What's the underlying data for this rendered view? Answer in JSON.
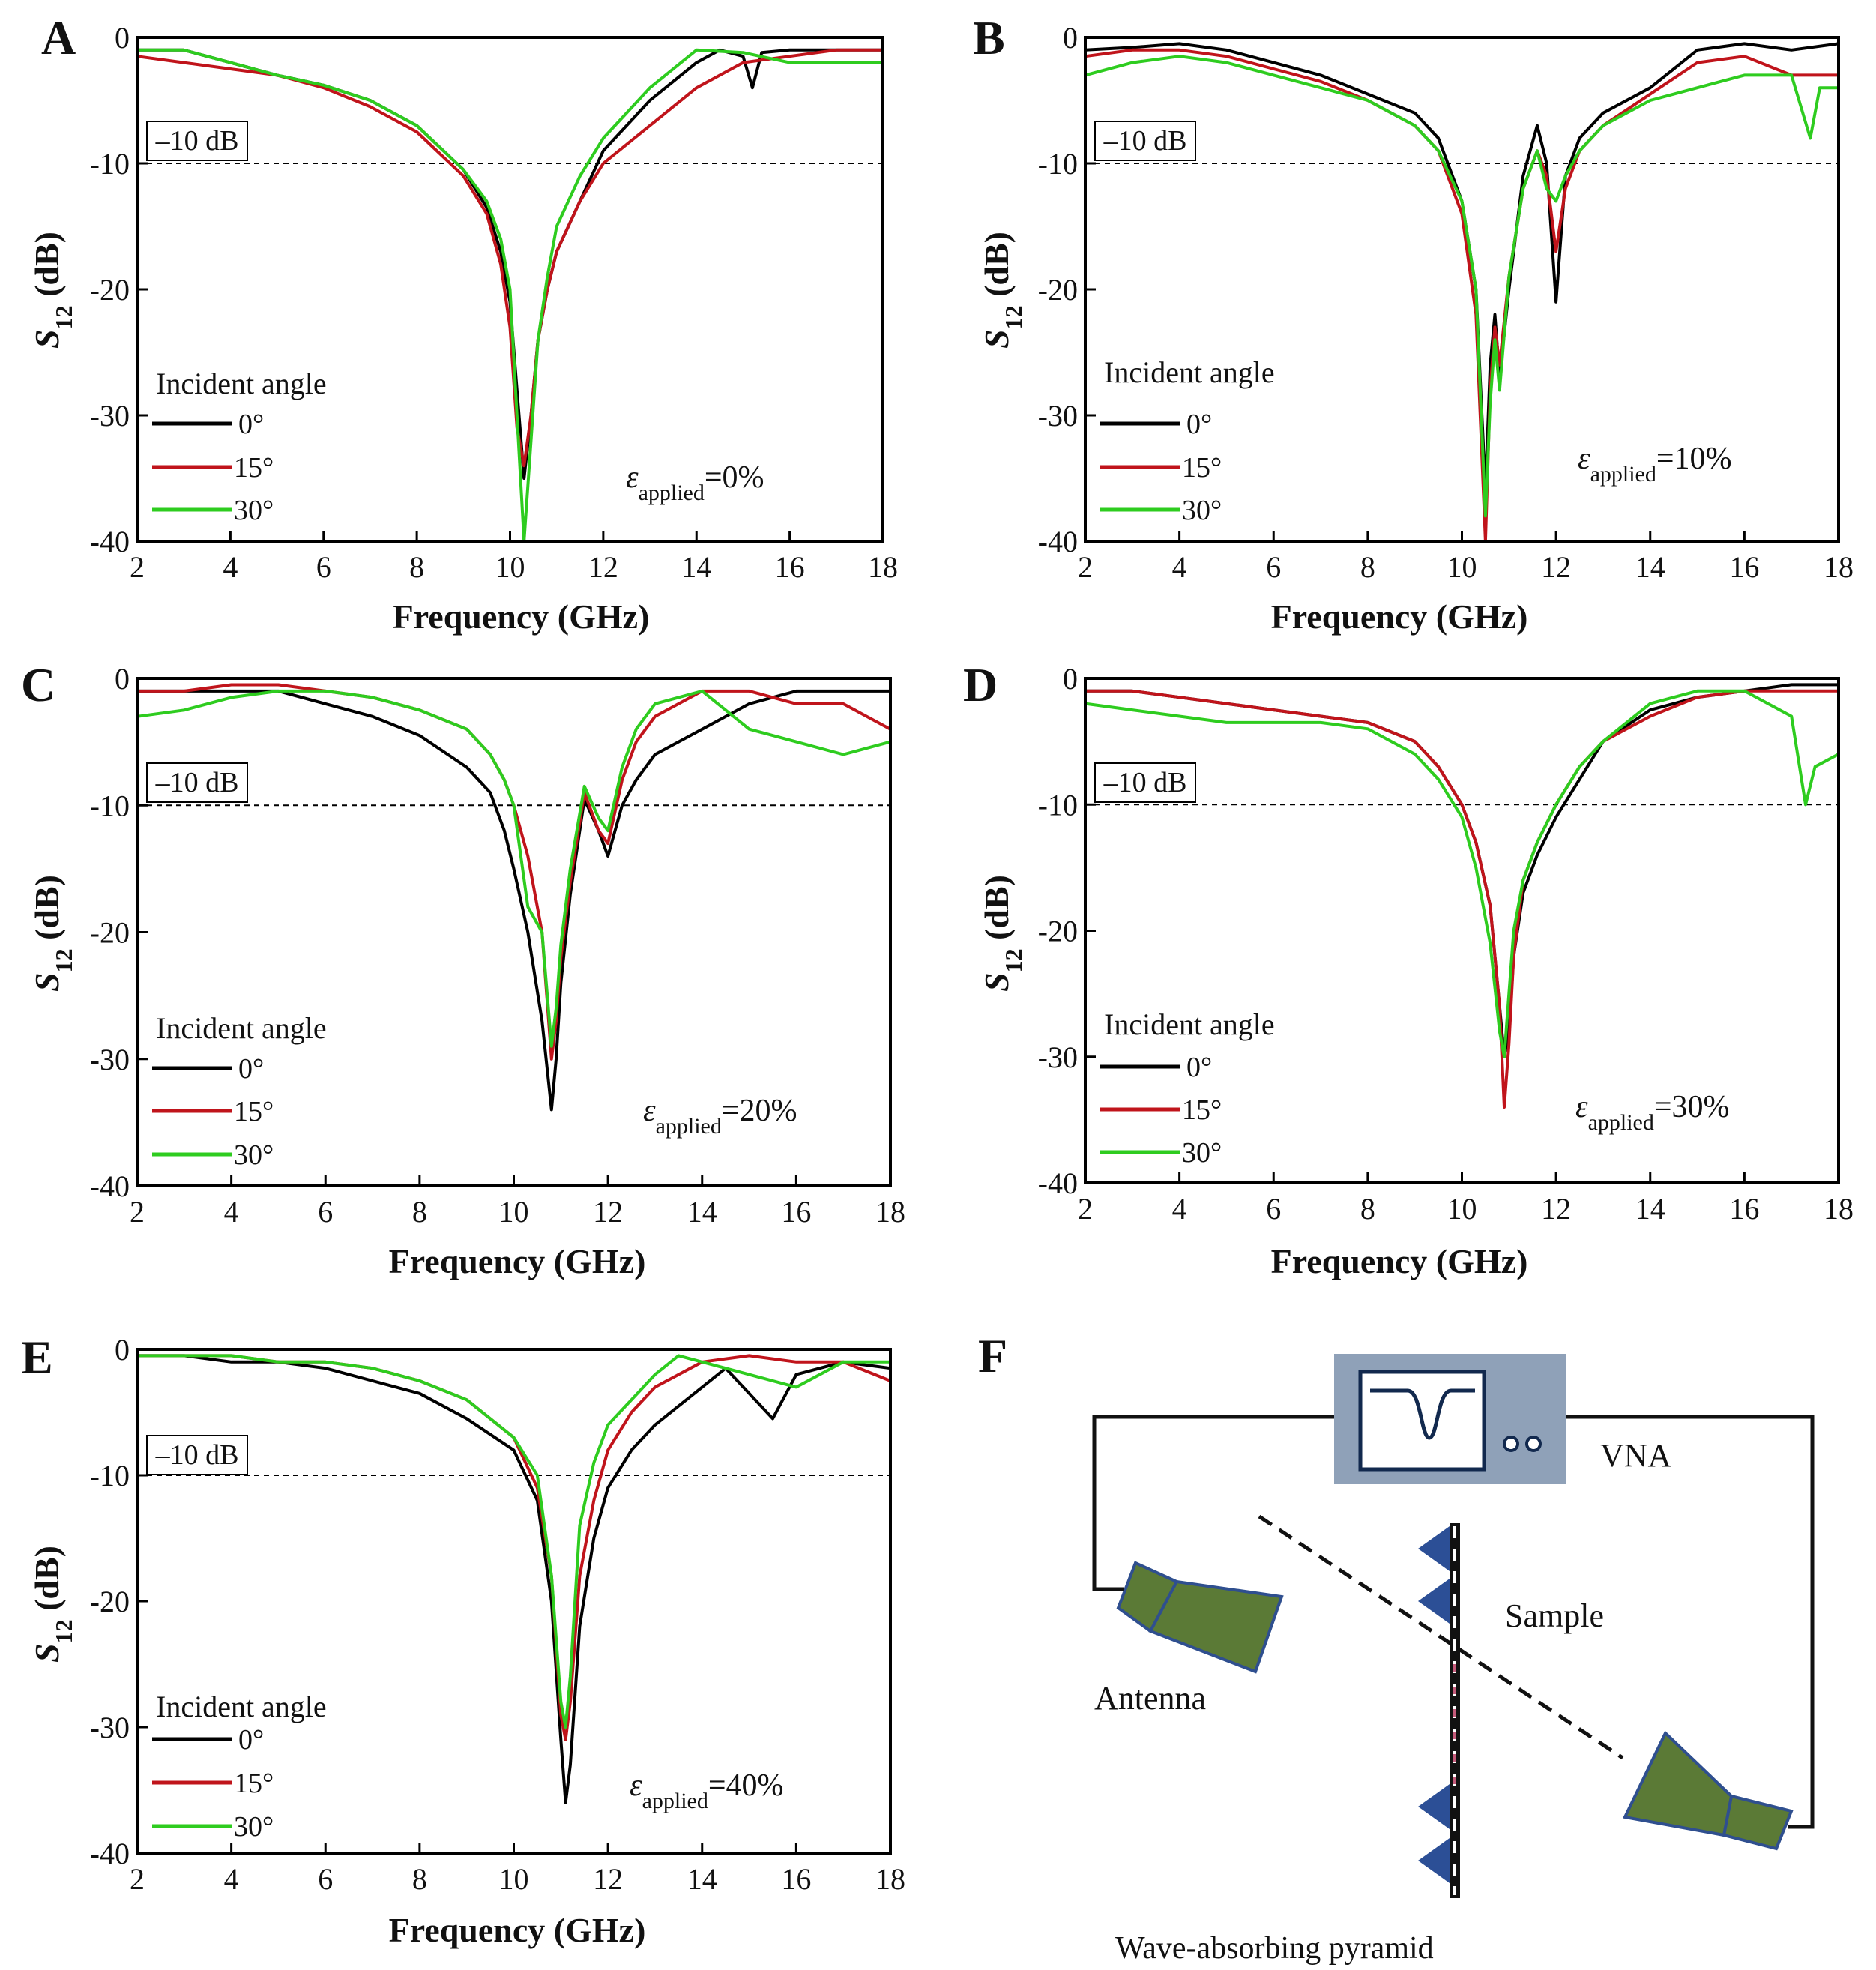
{
  "colors": {
    "angle_0": "#000000",
    "angle_15": "#c0141b",
    "angle_30": "#2ecc1f",
    "antenna": "#5b7a36",
    "antenna_edge": "#2f4f8f",
    "pyramid": "#2c4f96",
    "vna_box": "#8fa1b8",
    "vna_screen_line": "#12294e"
  },
  "shared": {
    "xlabel": "Frequency (GHz)",
    "ylabel_main": "S",
    "ylabel_sub": "12",
    "ylabel_unit": " (dB)",
    "threshold_label": "–10 dB",
    "legend_title": "Incident angle",
    "legend_labels": [
      "0°",
      "15°",
      "30°"
    ],
    "eps_symbol": "ε",
    "eps_sub": "applied",
    "x_ticks": [
      "2",
      "4",
      "6",
      "8",
      "10",
      "12",
      "14",
      "16",
      "18"
    ],
    "y_ticks": [
      "0",
      "-10",
      "-20",
      "-30",
      "-40"
    ]
  },
  "chart_data": [
    {
      "panel": "A",
      "type": "line",
      "strain_text": "=0%",
      "xlim": [
        2,
        18
      ],
      "ylim": [
        -40,
        0
      ],
      "threshold": -10,
      "series": [
        {
          "name": "0°",
          "x": [
            2,
            3,
            4,
            5,
            6,
            7,
            8,
            9,
            9.5,
            9.8,
            10.0,
            10.15,
            10.3,
            10.45,
            10.6,
            10.8,
            11.0,
            11.5,
            12.0,
            13.0,
            14.0,
            14.5,
            15.0,
            15.2,
            15.4,
            16.0,
            17.0,
            18.0
          ],
          "values": [
            -1,
            -1,
            -2,
            -3,
            -3.8,
            -5,
            -7,
            -10.5,
            -13.5,
            -17,
            -21,
            -28,
            -35,
            -30,
            -24,
            -20,
            -17,
            -13,
            -9,
            -5,
            -2,
            -1,
            -1.5,
            -4,
            -1.2,
            -1,
            -1,
            -1
          ]
        },
        {
          "name": "15°",
          "x": [
            2,
            3,
            4,
            5,
            6,
            7,
            8,
            9,
            9.5,
            9.8,
            10.0,
            10.15,
            10.3,
            10.45,
            10.6,
            10.8,
            11.0,
            11.5,
            12.0,
            13.0,
            14.0,
            15.0,
            16.0,
            17.0,
            18.0
          ],
          "values": [
            -1.5,
            -2,
            -2.5,
            -3,
            -4,
            -5.5,
            -7.5,
            -11,
            -14,
            -18,
            -23,
            -31,
            -34,
            -30,
            -24,
            -20,
            -17,
            -13,
            -10,
            -7,
            -4,
            -2,
            -1.5,
            -1,
            -1
          ]
        },
        {
          "name": "30°",
          "x": [
            2,
            3,
            4,
            5,
            6,
            7,
            8,
            9,
            9.5,
            9.8,
            10.0,
            10.15,
            10.3,
            10.45,
            10.6,
            10.8,
            11.0,
            11.5,
            12.0,
            13.0,
            14.0,
            15.0,
            16.0,
            17.0,
            18.0
          ],
          "values": [
            -1,
            -1,
            -2,
            -3,
            -3.8,
            -5,
            -7,
            -10.5,
            -13,
            -16,
            -20,
            -30,
            -40,
            -32,
            -24,
            -19,
            -15,
            -11,
            -8,
            -4,
            -1,
            -1.2,
            -2,
            -2,
            -2
          ]
        }
      ]
    },
    {
      "panel": "B",
      "type": "line",
      "strain_text": "=10%",
      "xlim": [
        2,
        18
      ],
      "ylim": [
        -40,
        0
      ],
      "threshold": -10,
      "series": [
        {
          "name": "0°",
          "x": [
            2,
            3,
            4,
            5,
            6,
            7,
            8,
            9,
            9.5,
            10.0,
            10.3,
            10.5,
            10.6,
            10.7,
            10.8,
            11.0,
            11.3,
            11.6,
            11.8,
            12.0,
            12.2,
            12.5,
            13.0,
            14.0,
            15.0,
            16.0,
            17.0,
            18.0
          ],
          "values": [
            -1,
            -0.8,
            -0.5,
            -1,
            -2,
            -3,
            -4.5,
            -6,
            -8,
            -13,
            -20,
            -36,
            -26,
            -22,
            -27,
            -20,
            -11,
            -7,
            -10,
            -21,
            -11,
            -8,
            -6,
            -4,
            -1,
            -0.5,
            -1,
            -0.5
          ]
        },
        {
          "name": "15°",
          "x": [
            2,
            3,
            4,
            5,
            6,
            7,
            8,
            9,
            9.5,
            10.0,
            10.3,
            10.5,
            10.6,
            10.7,
            10.8,
            11.0,
            11.3,
            11.6,
            11.8,
            12.0,
            12.2,
            12.5,
            13.0,
            14.0,
            15.0,
            16.0,
            17.0,
            18.0
          ],
          "values": [
            -1.5,
            -1,
            -1,
            -1.5,
            -2.5,
            -3.5,
            -5,
            -7,
            -9,
            -14,
            -22,
            -40,
            -28,
            -23,
            -26,
            -19,
            -12,
            -9,
            -11,
            -17,
            -12,
            -9,
            -7,
            -4.5,
            -2,
            -1.5,
            -3,
            -3
          ]
        },
        {
          "name": "30°",
          "x": [
            2,
            3,
            4,
            5,
            6,
            7,
            8,
            9,
            9.5,
            10.0,
            10.3,
            10.5,
            10.6,
            10.7,
            10.8,
            11.0,
            11.3,
            11.6,
            11.8,
            12.0,
            12.2,
            12.5,
            13.0,
            14.0,
            15.0,
            16.0,
            17.0,
            17.4,
            17.6,
            18.0
          ],
          "values": [
            -3,
            -2,
            -1.5,
            -2,
            -3,
            -4,
            -5,
            -7,
            -9,
            -13,
            -20,
            -38,
            -29,
            -24,
            -28,
            -19,
            -12,
            -9,
            -12,
            -13,
            -11,
            -9,
            -7,
            -5,
            -4,
            -3,
            -3,
            -8,
            -4,
            -4
          ]
        }
      ]
    },
    {
      "panel": "C",
      "type": "line",
      "strain_text": "=20%",
      "xlim": [
        2,
        18
      ],
      "ylim": [
        -40,
        0
      ],
      "threshold": -10,
      "series": [
        {
          "name": "0°",
          "x": [
            2,
            3,
            4,
            5,
            6,
            7,
            8,
            9,
            9.5,
            9.8,
            10.0,
            10.3,
            10.6,
            10.8,
            10.9,
            11.0,
            11.2,
            11.5,
            11.8,
            12.0,
            12.3,
            12.6,
            13.0,
            14.0,
            15.0,
            16.0,
            17.0,
            18.0
          ],
          "values": [
            -1,
            -1,
            -1,
            -1,
            -2,
            -3,
            -4.5,
            -7,
            -9,
            -12,
            -15,
            -20,
            -27,
            -34,
            -30,
            -24,
            -17,
            -9.5,
            -12,
            -14,
            -10,
            -8,
            -6,
            -4,
            -2,
            -1,
            -1,
            -1
          ]
        },
        {
          "name": "15°",
          "x": [
            2,
            3,
            4,
            5,
            6,
            7,
            8,
            9,
            9.5,
            9.8,
            10.0,
            10.3,
            10.6,
            10.8,
            10.9,
            11.0,
            11.2,
            11.5,
            11.8,
            12.0,
            12.3,
            12.6,
            13.0,
            14.0,
            15.0,
            16.0,
            17.0,
            18.0
          ],
          "values": [
            -1,
            -1,
            -0.5,
            -0.5,
            -1,
            -1.5,
            -2.5,
            -4,
            -6,
            -8,
            -10,
            -14,
            -20,
            -30,
            -27,
            -22,
            -16,
            -9,
            -12,
            -13,
            -8,
            -5,
            -3,
            -1,
            -1,
            -2,
            -2,
            -4
          ]
        },
        {
          "name": "30°",
          "x": [
            2,
            3,
            4,
            5,
            6,
            7,
            8,
            9,
            9.5,
            9.8,
            10.0,
            10.3,
            10.6,
            10.8,
            10.9,
            11.0,
            11.2,
            11.5,
            11.8,
            12.0,
            12.3,
            12.6,
            13.0,
            14.0,
            15.0,
            16.0,
            17.0,
            18.0
          ],
          "values": [
            -3,
            -2.5,
            -1.5,
            -1,
            -1,
            -1.5,
            -2.5,
            -4,
            -6,
            -8,
            -10,
            -18,
            -20,
            -29,
            -26,
            -21,
            -15,
            -8.5,
            -11,
            -12,
            -7,
            -4,
            -2,
            -1,
            -4,
            -5,
            -6,
            -5
          ]
        }
      ]
    },
    {
      "panel": "D",
      "type": "line",
      "strain_text": "=30%",
      "xlim": [
        2,
        18
      ],
      "ylim": [
        -40,
        0
      ],
      "threshold": -10,
      "series": [
        {
          "name": "0°",
          "x": [
            2,
            3,
            4,
            5,
            6,
            7,
            8,
            9,
            9.5,
            10.0,
            10.3,
            10.6,
            10.8,
            10.9,
            11.0,
            11.1,
            11.3,
            11.6,
            12.0,
            12.5,
            13.0,
            14.0,
            15.0,
            16.0,
            17.0,
            18.0
          ],
          "values": [
            -1,
            -1,
            -1.5,
            -2,
            -2.5,
            -3,
            -3.5,
            -5,
            -7,
            -10,
            -13,
            -18,
            -26,
            -30,
            -28,
            -22,
            -17,
            -14,
            -11,
            -8,
            -5,
            -2.5,
            -1.5,
            -1,
            -0.5,
            -0.5
          ]
        },
        {
          "name": "15°",
          "x": [
            2,
            3,
            4,
            5,
            6,
            7,
            8,
            9,
            9.5,
            10.0,
            10.3,
            10.6,
            10.8,
            10.9,
            11.0,
            11.1,
            11.3,
            11.6,
            12.0,
            12.5,
            13.0,
            14.0,
            15.0,
            16.0,
            17.0,
            18.0
          ],
          "values": [
            -1,
            -1,
            -1.5,
            -2,
            -2.5,
            -3,
            -3.5,
            -5,
            -7,
            -10,
            -13,
            -18,
            -26,
            -34,
            -29,
            -22,
            -16,
            -13,
            -10,
            -7,
            -5,
            -3,
            -1.5,
            -1,
            -1,
            -1
          ]
        },
        {
          "name": "30°",
          "x": [
            2,
            3,
            4,
            5,
            6,
            7,
            8,
            9,
            9.5,
            10.0,
            10.3,
            10.6,
            10.8,
            10.9,
            11.0,
            11.1,
            11.3,
            11.6,
            12.0,
            12.5,
            13.0,
            14.0,
            15.0,
            16.0,
            17.0,
            17.3,
            17.5,
            18.0
          ],
          "values": [
            -2,
            -2.5,
            -3,
            -3.5,
            -3.5,
            -3.5,
            -4,
            -6,
            -8,
            -11,
            -15,
            -21,
            -28,
            -30,
            -25,
            -20,
            -16,
            -13,
            -10,
            -7,
            -5,
            -2,
            -1,
            -1,
            -3,
            -10,
            -7,
            -6
          ]
        }
      ]
    },
    {
      "panel": "E",
      "type": "line",
      "strain_text": "=40%",
      "xlim": [
        2,
        18
      ],
      "ylim": [
        -40,
        0
      ],
      "threshold": -10,
      "series": [
        {
          "name": "0°",
          "x": [
            2,
            3,
            4,
            5,
            6,
            7,
            8,
            9,
            10.0,
            10.5,
            10.8,
            11.0,
            11.1,
            11.2,
            11.4,
            11.7,
            12.0,
            12.5,
            13.0,
            14.0,
            14.5,
            15.0,
            15.5,
            16.0,
            17.0,
            18.0
          ],
          "values": [
            -0.5,
            -0.5,
            -1,
            -1,
            -1.5,
            -2.5,
            -3.5,
            -5.5,
            -8,
            -12,
            -20,
            -31,
            -36,
            -33,
            -22,
            -15,
            -11,
            -8,
            -6,
            -3,
            -1.5,
            -3.5,
            -5.5,
            -2,
            -1,
            -1.5
          ]
        },
        {
          "name": "15°",
          "x": [
            2,
            3,
            4,
            5,
            6,
            7,
            8,
            9,
            10.0,
            10.5,
            10.8,
            11.0,
            11.1,
            11.2,
            11.4,
            11.7,
            12.0,
            12.5,
            13.0,
            14.0,
            15.0,
            16.0,
            17.0,
            18.0
          ],
          "values": [
            -0.5,
            -0.5,
            -0.5,
            -1,
            -1,
            -1.5,
            -2.5,
            -4,
            -7,
            -11,
            -18,
            -29,
            -31,
            -28,
            -18,
            -12,
            -8,
            -5,
            -3,
            -1,
            -0.5,
            -1,
            -1,
            -2.5
          ]
        },
        {
          "name": "30°",
          "x": [
            2,
            3,
            4,
            5,
            6,
            7,
            8,
            9,
            10.0,
            10.5,
            10.8,
            11.0,
            11.1,
            11.2,
            11.4,
            11.7,
            12.0,
            12.5,
            13.0,
            13.5,
            14.0,
            15.0,
            16.0,
            17.0,
            18.0
          ],
          "values": [
            -0.5,
            -0.5,
            -0.5,
            -1,
            -1,
            -1.5,
            -2.5,
            -4,
            -7,
            -10,
            -18,
            -28,
            -30,
            -26,
            -14,
            -9,
            -6,
            -4,
            -2,
            -0.5,
            -1,
            -2,
            -3,
            -1,
            -1
          ]
        }
      ]
    }
  ],
  "diagram": {
    "panel": "F",
    "vna_label": "VNA",
    "sample_label": "Sample",
    "antenna_label": "Antenna",
    "pyramid_label": "Wave-absorbing pyramid"
  }
}
